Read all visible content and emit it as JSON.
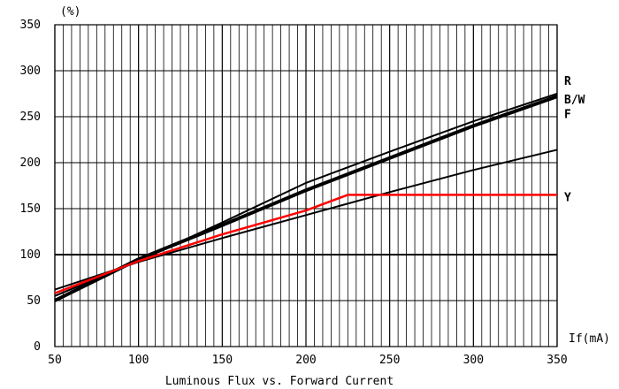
{
  "chart_data": {
    "type": "line",
    "title": "Luminous Flux vs. Forward Current",
    "xlabel": "If(mA)",
    "ylabel": "(%)",
    "xlim": [
      50,
      350
    ],
    "ylim": [
      0,
      350
    ],
    "x_ticks": [
      50,
      100,
      150,
      200,
      250,
      300,
      350
    ],
    "y_ticks": [
      0,
      50,
      100,
      150,
      200,
      250,
      300,
      350
    ],
    "grid": true,
    "legend": "inline-right",
    "series": [
      {
        "name": "R",
        "color": "#000000",
        "x": [
          50,
          100,
          150,
          200,
          250,
          300,
          350
        ],
        "y": [
          55,
          93,
          135,
          178,
          212,
          245,
          275
        ]
      },
      {
        "name": "B/W",
        "color": "#000000",
        "x": [
          50,
          100,
          150,
          200,
          250,
          300,
          350
        ],
        "y": [
          50,
          95,
          132,
          170,
          205,
          240,
          272
        ]
      },
      {
        "name": "F",
        "color": "#000000",
        "x": [
          50,
          100,
          150,
          200,
          250,
          300,
          350
        ],
        "y": [
          62,
          92,
          118,
          143,
          168,
          192,
          214
        ]
      },
      {
        "name": "Y",
        "color": "#ff0000",
        "x": [
          50,
          100,
          150,
          200,
          225,
          250,
          300,
          350
        ],
        "y": [
          58,
          93,
          122,
          148,
          165,
          165,
          165,
          165
        ]
      }
    ]
  }
}
